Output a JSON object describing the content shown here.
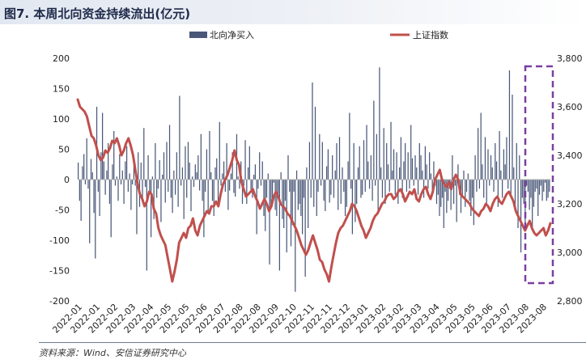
{
  "header": {
    "title": "图7. 本周北向资金持续流出(亿元)"
  },
  "footer": {
    "source": "资料来源：Wind、安信证券研究中心"
  },
  "chart_data": {
    "type": "bar+line",
    "legend": [
      "北向净买入",
      "上证指数"
    ],
    "legend_position": "top",
    "y_left": {
      "lim": [
        -200,
        200
      ],
      "ticks": [
        "200",
        "150",
        "100",
        "50",
        "0",
        "-50",
        "-100",
        "-150",
        "-200"
      ]
    },
    "y_right": {
      "lim": [
        2800,
        3800
      ],
      "ticks": [
        "3,800",
        "3,600",
        "3,400",
        "3,200",
        "3,000",
        "2,800"
      ]
    },
    "x_ticks": [
      "2022-01",
      "2022-01",
      "2022-02",
      "2022-03",
      "2022-04",
      "2022-05",
      "2022-05",
      "2022-06",
      "2022-07",
      "2022-08",
      "2022-08",
      "2022-09",
      "2022-10",
      "2022-11",
      "2022-11",
      "2022-12",
      "2023-01",
      "2023-02",
      "2023-02",
      "2023-03",
      "2023-04",
      "2023-05",
      "2023-05",
      "2023-06",
      "2023-07",
      "2023-08",
      "2023-08"
    ],
    "series": [
      {
        "name": "北向净买入",
        "type": "bar",
        "color": "#4a5878",
        "x_range": [
          "2022-01",
          "2023-08"
        ],
        "values": [
          28,
          -35,
          -68,
          22,
          42,
          -8,
          68,
          -15,
          -105,
          34,
          12,
          -55,
          -130,
          120,
          -20,
          -60,
          45,
          110,
          30,
          -25,
          15,
          60,
          -40,
          -95,
          25,
          80,
          -10,
          5,
          -35,
          42,
          -8,
          15,
          -40,
          30,
          55,
          -20,
          10,
          -50,
          -8,
          28,
          -10,
          -90,
          45,
          -45,
          28,
          -30,
          85,
          -12,
          -150,
          40,
          -20,
          -95,
          5,
          -65,
          60,
          -30,
          -15,
          32,
          -70,
          8,
          45,
          -38,
          62,
          -20,
          90,
          -30,
          -55,
          15,
          -25,
          45,
          -45,
          138,
          -10,
          20,
          -65,
          55,
          -30,
          62,
          28,
          -52,
          5,
          -12,
          25,
          12,
          40,
          -18,
          75,
          -35,
          -95,
          -20,
          50,
          -55,
          80,
          12,
          -35,
          -60,
          20,
          35,
          -42,
          95,
          -10,
          10,
          30,
          -20,
          60,
          -50,
          -18,
          10,
          45,
          -22,
          -28,
          75,
          5,
          -15,
          30,
          -40,
          -10,
          65,
          -40,
          20,
          55,
          -20,
          -30,
          8,
          25,
          -90,
          -15,
          45,
          -10,
          30,
          -60,
          -85,
          -30,
          10,
          -140,
          -45,
          -40,
          -5,
          -50,
          -60,
          -30,
          -150,
          12,
          -65,
          -80,
          -35,
          -120,
          40,
          -20,
          -110,
          -75,
          -20,
          -185,
          15,
          -50,
          -40,
          -60,
          -90,
          -30,
          -160,
          20,
          -80,
          62,
          -30,
          160,
          -45,
          120,
          -60,
          -20,
          75,
          -10,
          62,
          -35,
          -52,
          22,
          50,
          -38,
          -25,
          40,
          -30,
          15,
          60,
          -50,
          70,
          -40,
          20,
          -20,
          -60,
          -45,
          30,
          110,
          -15,
          -90,
          60,
          -70,
          -40,
          20,
          55,
          -30,
          -25,
          65,
          -20,
          90,
          30,
          -15,
          40,
          -35,
          130,
          -10,
          75,
          -50,
          185,
          20,
          -30,
          85,
          -40,
          60,
          25,
          -20,
          95,
          15,
          50,
          -25,
          45,
          -40,
          20,
          70,
          -30,
          30,
          60,
          -20,
          45,
          -15,
          90,
          35,
          -10,
          40,
          20,
          -25,
          60,
          40,
          15,
          -30,
          55,
          25,
          -15,
          45,
          10,
          -20,
          30,
          -10,
          -40,
          -25,
          -60,
          -45,
          -30,
          -80,
          -20,
          -55,
          -35,
          -15,
          -50,
          40,
          -40,
          -10,
          -70,
          25,
          -25,
          -55,
          -30,
          15,
          -45,
          -20,
          10,
          -35,
          -60,
          -30,
          -75,
          40,
          -20,
          85,
          -15,
          110,
          25,
          -30,
          70,
          -40,
          50,
          -10,
          40,
          20,
          -20,
          60,
          30,
          -45,
          80,
          15,
          -30,
          50,
          25,
          70,
          -15,
          180,
          -30,
          140,
          20,
          -50,
          60,
          -80,
          40,
          -120,
          -30,
          -40,
          -75,
          -10,
          -20,
          -50,
          -30,
          -85,
          -45,
          -20,
          -15,
          -60,
          -25,
          -10,
          -35,
          -20,
          -5,
          -35,
          -30,
          -20
        ]
      },
      {
        "name": "上证指数",
        "type": "line",
        "color": "#c0504d",
        "x_range": [
          "2022-01",
          "2023-08"
        ],
        "values": [
          3630,
          3600,
          3590,
          3580,
          3560,
          3520,
          3480,
          3470,
          3440,
          3400,
          3380,
          3390,
          3420,
          3410,
          3430,
          3460,
          3450,
          3470,
          3440,
          3400,
          3420,
          3450,
          3470,
          3440,
          3400,
          3340,
          3280,
          3240,
          3220,
          3190,
          3210,
          3250,
          3240,
          3180,
          3160,
          3100,
          3070,
          3050,
          3030,
          2980,
          2930,
          2880,
          2920,
          2970,
          3040,
          3060,
          3080,
          3060,
          3100,
          3110,
          3140,
          3090,
          3070,
          3110,
          3130,
          3150,
          3170,
          3160,
          3190,
          3190,
          3210,
          3190,
          3240,
          3280,
          3300,
          3320,
          3350,
          3380,
          3420,
          3380,
          3360,
          3290,
          3260,
          3230,
          3240,
          3250,
          3260,
          3230,
          3210,
          3180,
          3200,
          3220,
          3200,
          3170,
          3190,
          3230,
          3250,
          3230,
          3200,
          3190,
          3180,
          3160,
          3150,
          3130,
          3110,
          3090,
          3060,
          3030,
          3010,
          2990,
          3010,
          3040,
          3070,
          3040,
          3010,
          2970,
          2960,
          2930,
          2910,
          2880,
          2940,
          2990,
          3040,
          3080,
          3100,
          3110,
          3130,
          3150,
          3170,
          3200,
          3190,
          3170,
          3140,
          3110,
          3090,
          3060,
          3080,
          3100,
          3130,
          3150,
          3160,
          3180,
          3200,
          3210,
          3230,
          3240,
          3240,
          3220,
          3230,
          3250,
          3260,
          3240,
          3210,
          3230,
          3250,
          3240,
          3260,
          3220,
          3210,
          3240,
          3260,
          3270,
          3240,
          3220,
          3250,
          3300,
          3320,
          3340,
          3300,
          3280,
          3270,
          3290,
          3260,
          3300,
          3320,
          3300,
          3240,
          3230,
          3220,
          3210,
          3200,
          3180,
          3170,
          3160,
          3150,
          3170,
          3180,
          3200,
          3190,
          3170,
          3200,
          3220,
          3230,
          3210,
          3200,
          3220,
          3240,
          3250,
          3230,
          3210,
          3170,
          3150,
          3130,
          3110,
          3090,
          3110,
          3130,
          3100,
          3080,
          3070,
          3080,
          3090,
          3100,
          3070,
          3090,
          3120
        ]
      }
    ]
  }
}
